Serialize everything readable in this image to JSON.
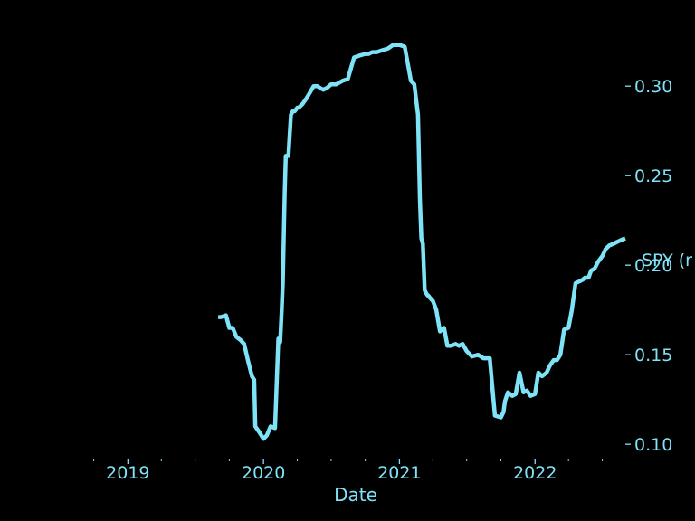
{
  "colors": {
    "background": "#000000",
    "accent": "#7fe3f7"
  },
  "chart_data": {
    "type": "line",
    "xlabel": "Date",
    "ylabel": "",
    "annotation": "SPY (r",
    "x_ticks": [
      "2019",
      "2020",
      "2021",
      "2022"
    ],
    "y_ticks": [
      "0.10",
      "0.15",
      "0.20",
      "0.25",
      "0.30"
    ],
    "xlim": [
      "2018-09-15",
      "2022-09-01"
    ],
    "ylim": [
      0.092,
      0.34
    ],
    "grid": false,
    "legend": "none",
    "series": [
      {
        "x": [
          "2019-09-01",
          "2019-09-08",
          "2019-09-22",
          "2019-10-01",
          "2019-10-10",
          "2019-10-20",
          "2019-11-01",
          "2019-11-10",
          "2019-11-20",
          "2019-12-01",
          "2019-12-07",
          "2019-12-10",
          "2019-12-20",
          "2020-01-01",
          "2020-01-10",
          "2020-01-20",
          "2020-02-01",
          "2020-02-10",
          "2020-02-15",
          "2020-02-19",
          "2020-02-22",
          "2020-02-27",
          "2020-03-01",
          "2020-03-08",
          "2020-03-15",
          "2020-03-20",
          "2020-03-25",
          "2020-04-01",
          "2020-04-05",
          "2020-04-10",
          "2020-04-15",
          "2020-04-25",
          "2020-05-01",
          "2020-05-15",
          "2020-05-25",
          "2020-06-01",
          "2020-06-10",
          "2020-06-20",
          "2020-07-01",
          "2020-07-15",
          "2020-08-01",
          "2020-08-15",
          "2020-09-01",
          "2020-09-15",
          "2020-10-01",
          "2020-10-10",
          "2020-10-20",
          "2020-11-01",
          "2020-11-15",
          "2020-12-01",
          "2020-12-15",
          "2021-01-01",
          "2021-01-15",
          "2021-02-01",
          "2021-02-10",
          "2021-02-20",
          "2021-02-25",
          "2021-03-01",
          "2021-03-05",
          "2021-03-10",
          "2021-03-15",
          "2021-03-18",
          "2021-03-20",
          "2021-03-23",
          "2021-04-01",
          "2021-04-10",
          "2021-04-20",
          "2021-05-01",
          "2021-05-10",
          "2021-05-20",
          "2021-06-01",
          "2021-06-10",
          "2021-06-20",
          "2021-07-01",
          "2021-07-15",
          "2021-08-01",
          "2021-08-15",
          "2021-09-01",
          "2021-09-15",
          "2021-10-01",
          "2021-10-08",
          "2021-10-12",
          "2021-10-20",
          "2021-11-01",
          "2021-11-10",
          "2021-11-20",
          "2021-12-01",
          "2021-12-10",
          "2021-12-20",
          "2022-01-01",
          "2022-01-10",
          "2022-01-20",
          "2022-02-01",
          "2022-02-10",
          "2022-02-20",
          "2022-03-01",
          "2022-03-10",
          "2022-03-20",
          "2022-04-01",
          "2022-04-10",
          "2022-04-20",
          "2022-05-01",
          "2022-05-10",
          "2022-05-15",
          "2022-05-25",
          "2022-06-01",
          "2022-06-10",
          "2022-06-20",
          "2022-07-01",
          "2022-07-10",
          "2022-07-20",
          "2022-08-01",
          "2022-08-10",
          "2022-08-20",
          "2022-09-01"
        ],
        "y": [
          0.171,
          0.171,
          0.172,
          0.165,
          0.165,
          0.16,
          0.158,
          0.156,
          0.147,
          0.138,
          0.136,
          0.11,
          0.107,
          0.103,
          0.105,
          0.11,
          0.109,
          0.159,
          0.157,
          0.175,
          0.19,
          0.24,
          0.261,
          0.261,
          0.284,
          0.286,
          0.286,
          0.288,
          0.288,
          0.289,
          0.29,
          0.293,
          0.295,
          0.3,
          0.3,
          0.299,
          0.298,
          0.299,
          0.301,
          0.301,
          0.303,
          0.304,
          0.316,
          0.317,
          0.318,
          0.318,
          0.319,
          0.319,
          0.32,
          0.321,
          0.323,
          0.323,
          0.322,
          0.303,
          0.301,
          0.284,
          0.237,
          0.215,
          0.212,
          0.186,
          0.184,
          0.183,
          0.183,
          0.182,
          0.18,
          0.175,
          0.163,
          0.165,
          0.155,
          0.155,
          0.156,
          0.155,
          0.156,
          0.152,
          0.149,
          0.15,
          0.148,
          0.148,
          0.116,
          0.115,
          0.118,
          0.124,
          0.129,
          0.127,
          0.128,
          0.14,
          0.129,
          0.13,
          0.127,
          0.128,
          0.14,
          0.138,
          0.14,
          0.144,
          0.147,
          0.147,
          0.15,
          0.164,
          0.165,
          0.175,
          0.19,
          0.191,
          0.192,
          0.193,
          0.193,
          0.197,
          0.198,
          0.202,
          0.205,
          0.209,
          0.211,
          0.212,
          0.213,
          0.214,
          0.215
        ]
      }
    ]
  }
}
